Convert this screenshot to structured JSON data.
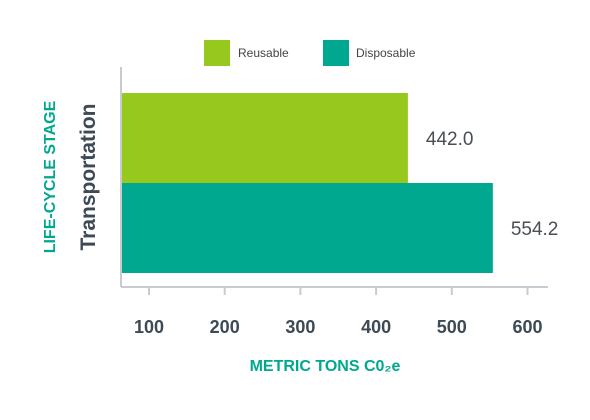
{
  "chart_data": {
    "type": "bar",
    "orientation": "horizontal",
    "categories": [
      "Transportation"
    ],
    "series": [
      {
        "name": "Reusable",
        "values": [
          442.0
        ],
        "color": "#97c81e"
      },
      {
        "name": "Disposable",
        "values": [
          554.2
        ],
        "color": "#00a88f"
      }
    ],
    "value_labels": [
      "442.0",
      "554.2"
    ],
    "xlabel": "METRIC TONS C0₂e",
    "ylabel": "LIFE-CYCLE STAGE",
    "xticks": [
      100,
      200,
      300,
      400,
      500,
      600
    ],
    "xlim": [
      62,
      626
    ],
    "legend_position": "top",
    "grid": false,
    "axis_title_color": "#00a88f"
  }
}
